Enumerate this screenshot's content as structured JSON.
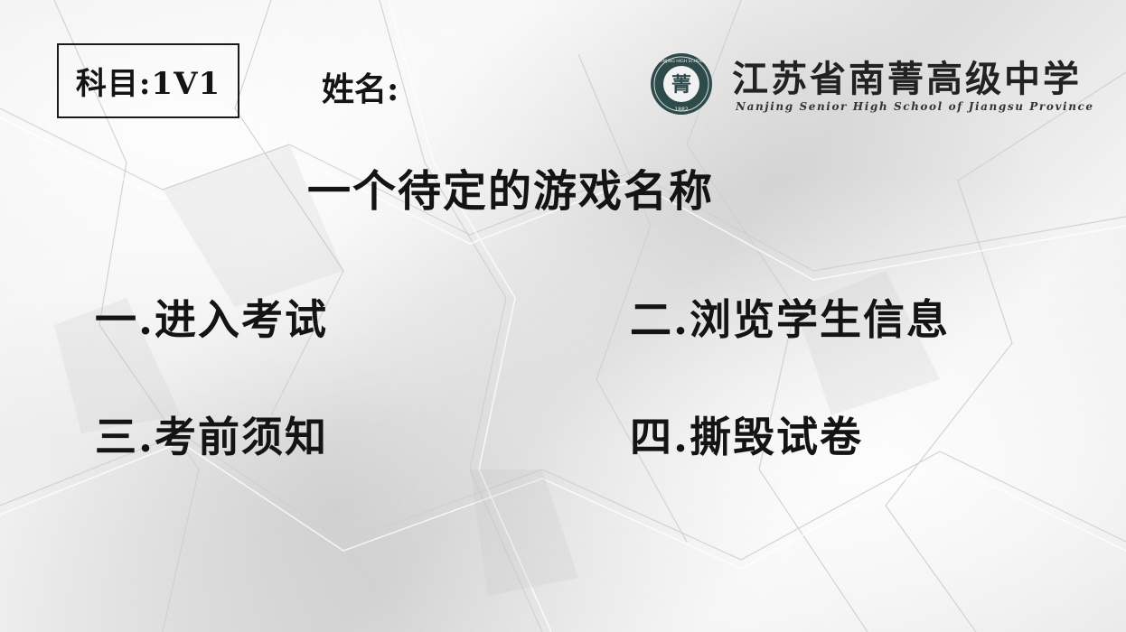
{
  "header": {
    "subject": "科目:1V1",
    "name_label": "姓名:"
  },
  "school": {
    "name_cn": "江苏省南菁高级中学",
    "name_en": "Nanjing Senior High School of Jiangsu Province",
    "seal_text_top": "NANJING HIGH SCHOOL",
    "seal_char": "菁",
    "seal_year": "1882",
    "seal_color": "#2e4a4a"
  },
  "game": {
    "title": "一个待定的游戏名称"
  },
  "menu": {
    "items": [
      {
        "label": "一.进入考试"
      },
      {
        "label": "二.浏览学生信息"
      },
      {
        "label": "三.考前须知"
      },
      {
        "label": "四.撕毁试卷"
      }
    ]
  }
}
